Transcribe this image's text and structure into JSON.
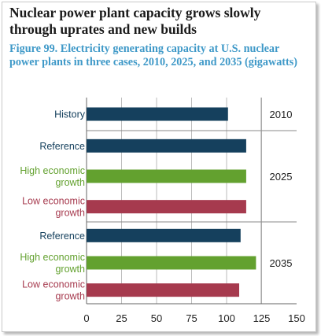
{
  "headline": "Nuclear power plant capacity grows slowly through uprates and new builds",
  "figure_title": "Figure 99. Electricity generating capacity at U.S. nuclear power plants in three cases, 2010, 2025, and 2035 (gigawatts)",
  "colors": {
    "history": "#15405d",
    "reference": "#15405d",
    "high_economic_growth": "#63a12f",
    "low_economic_growth": "#a63a4e",
    "figure_title": "#3f99c8",
    "grid": "#bbbbbb"
  },
  "chart_data": {
    "type": "bar",
    "orientation": "horizontal",
    "title": "Figure 99. Electricity generating capacity at U.S. nuclear power plants in three cases, 2010, 2025, and 2035 (gigawatts)",
    "xlim": [
      0,
      150
    ],
    "xticks": [
      "0",
      "25",
      "50",
      "75",
      "100",
      "125",
      "150"
    ],
    "grid": "vertical",
    "groups": [
      {
        "year": "2010",
        "bars": [
          {
            "label": "History",
            "value": 101,
            "color": "#15405d"
          }
        ]
      },
      {
        "year": "2025",
        "bars": [
          {
            "label": "Reference",
            "value": 114,
            "color": "#15405d"
          },
          {
            "label": "High economic growth",
            "lines": [
              "High economic",
              "growth"
            ],
            "value": 114,
            "color": "#63a12f"
          },
          {
            "label": "Low economic growth",
            "lines": [
              "Low economic",
              "growth"
            ],
            "value": 114,
            "color": "#a63a4e"
          }
        ]
      },
      {
        "year": "2035",
        "bars": [
          {
            "label": "Reference",
            "value": 110,
            "color": "#15405d"
          },
          {
            "label": "High economic growth",
            "lines": [
              "High economic",
              "growth"
            ],
            "value": 121,
            "color": "#63a12f"
          },
          {
            "label": "Low economic growth",
            "lines": [
              "Low economic",
              "growth"
            ],
            "value": 109,
            "color": "#a63a4e"
          }
        ]
      }
    ]
  }
}
